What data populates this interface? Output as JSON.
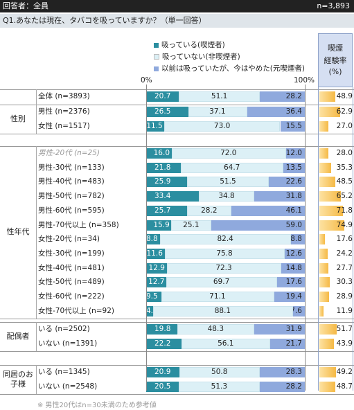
{
  "header": {
    "respondents": "回答者：全員",
    "n_total": "n=3,893"
  },
  "question": "Q1.あなたは現在、タバコを吸っていますか？（単一回答）",
  "axis": {
    "zero": "0%",
    "hundred": "100%"
  },
  "rate_header": [
    "喫煙",
    "経験率",
    "(%)"
  ],
  "footnote": "※ 男性20代はn=30未満のため参考値",
  "colors": {
    "smoke": "#2b8ea0",
    "no_smoke": "#dcf0f6",
    "quit": "#8fa9dd",
    "rate": "#f5b945"
  },
  "chart_data": {
    "type": "bar",
    "stacked": true,
    "orientation": "horizontal",
    "xlim": [
      0,
      100
    ],
    "series": [
      {
        "name": "吸っている(喫煙者)"
      },
      {
        "name": "吸っていない(非喫煙者)"
      },
      {
        "name": "以前は吸っていたが、今はやめた(元喫煙者)"
      }
    ],
    "rate_label": "喫煙経験率",
    "groups": [
      {
        "label": "",
        "rows": [
          {
            "label": "全体 (n=3893)",
            "values": [
              20.7,
              51.1,
              28.2
            ],
            "rate": 48.9
          }
        ]
      },
      {
        "label": "性別",
        "rows": [
          {
            "label": "男性 (n=2376)",
            "values": [
              26.5,
              37.1,
              36.4
            ],
            "rate": 62.9
          },
          {
            "label": "女性 (n=1517)",
            "values": [
              11.5,
              73.0,
              15.5
            ],
            "rate": 27.0
          }
        ]
      },
      {
        "label": "性年代",
        "rows": [
          {
            "label": "男性-20代 (n=25)",
            "values": [
              16.0,
              72.0,
              12.0
            ],
            "rate": 28.0,
            "reference": true
          },
          {
            "label": "男性-30代 (n=133)",
            "values": [
              21.8,
              64.7,
              13.5
            ],
            "rate": 35.3
          },
          {
            "label": "男性-40代 (n=483)",
            "values": [
              25.9,
              51.5,
              22.6
            ],
            "rate": 48.5
          },
          {
            "label": "男性-50代 (n=782)",
            "values": [
              33.4,
              34.8,
              31.8
            ],
            "rate": 65.2
          },
          {
            "label": "男性-60代 (n=595)",
            "values": [
              25.7,
              28.2,
              46.1
            ],
            "rate": 71.8
          },
          {
            "label": "男性-70代以上 (n=358)",
            "values": [
              15.9,
              25.1,
              59.0
            ],
            "rate": 74.9
          },
          {
            "label": "女性-20代 (n=34)",
            "values": [
              8.8,
              82.4,
              8.8
            ],
            "rate": 17.6
          },
          {
            "label": "女性-30代 (n=199)",
            "values": [
              11.6,
              75.8,
              12.6
            ],
            "rate": 24.2
          },
          {
            "label": "女性-40代 (n=481)",
            "values": [
              12.9,
              72.3,
              14.8
            ],
            "rate": 27.7
          },
          {
            "label": "女性-50代 (n=489)",
            "values": [
              12.7,
              69.7,
              17.6
            ],
            "rate": 30.3
          },
          {
            "label": "女性-60代 (n=222)",
            "values": [
              9.5,
              71.1,
              19.4
            ],
            "rate": 28.9
          },
          {
            "label": "女性-70代以上 (n=92)",
            "values": [
              4.3,
              88.1,
              7.6
            ],
            "rate": 11.9
          }
        ]
      },
      {
        "label": "配偶者",
        "rows": [
          {
            "label": "いる (n=2502)",
            "values": [
              19.8,
              48.3,
              31.9
            ],
            "rate": 51.7
          },
          {
            "label": "いない (n=1391)",
            "values": [
              22.2,
              56.1,
              21.7
            ],
            "rate": 43.9
          }
        ]
      },
      {
        "label": "同居のお子様",
        "rows": [
          {
            "label": "いる (n=1345)",
            "values": [
              20.9,
              50.8,
              28.3
            ],
            "rate": 49.2
          },
          {
            "label": "いない (n=2548)",
            "values": [
              20.5,
              51.3,
              28.2
            ],
            "rate": 48.7
          }
        ]
      }
    ]
  }
}
